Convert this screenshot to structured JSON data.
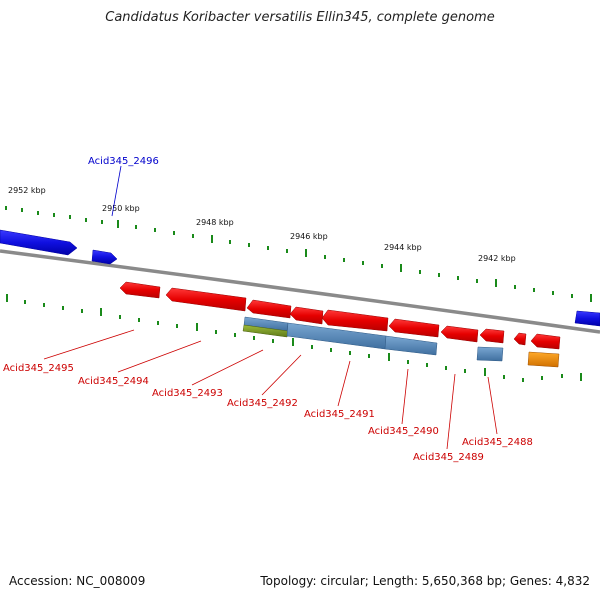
{
  "title": "Candidatus Koribacter versatilis Ellin345, complete genome",
  "footer": {
    "accession": "Accession: NC_008009",
    "topology": "Topology: circular; Length: 5,650,368 bp; Genes: 4,832"
  },
  "scale_labels": [
    "2952 kbp",
    "2950 kbp",
    "2948 kbp",
    "2946 kbp",
    "2944 kbp",
    "2942 kbp"
  ],
  "gene_labels": [
    {
      "text": "Acid345_2496",
      "color": "#0000cc"
    },
    {
      "text": "Acid345_2495",
      "color": "#cc0000"
    },
    {
      "text": "Acid345_2494",
      "color": "#cc0000"
    },
    {
      "text": "Acid345_2493",
      "color": "#cc0000"
    },
    {
      "text": "Acid345_2492",
      "color": "#cc0000"
    },
    {
      "text": "Acid345_2491",
      "color": "#cc0000"
    },
    {
      "text": "Acid345_2490",
      "color": "#cc0000"
    },
    {
      "text": "Acid345_2489",
      "color": "#cc0000"
    },
    {
      "text": "Acid345_2488",
      "color": "#cc0000"
    }
  ],
  "colors": {
    "forward_gene": "#1414e6",
    "reverse_gene": "#ee0000",
    "cds_feature": "#5b8fc0",
    "rna_feature": "#7a9b2a",
    "other_feature": "#f08c00",
    "backbone": "#888888",
    "tick": "#1a8a1a"
  }
}
